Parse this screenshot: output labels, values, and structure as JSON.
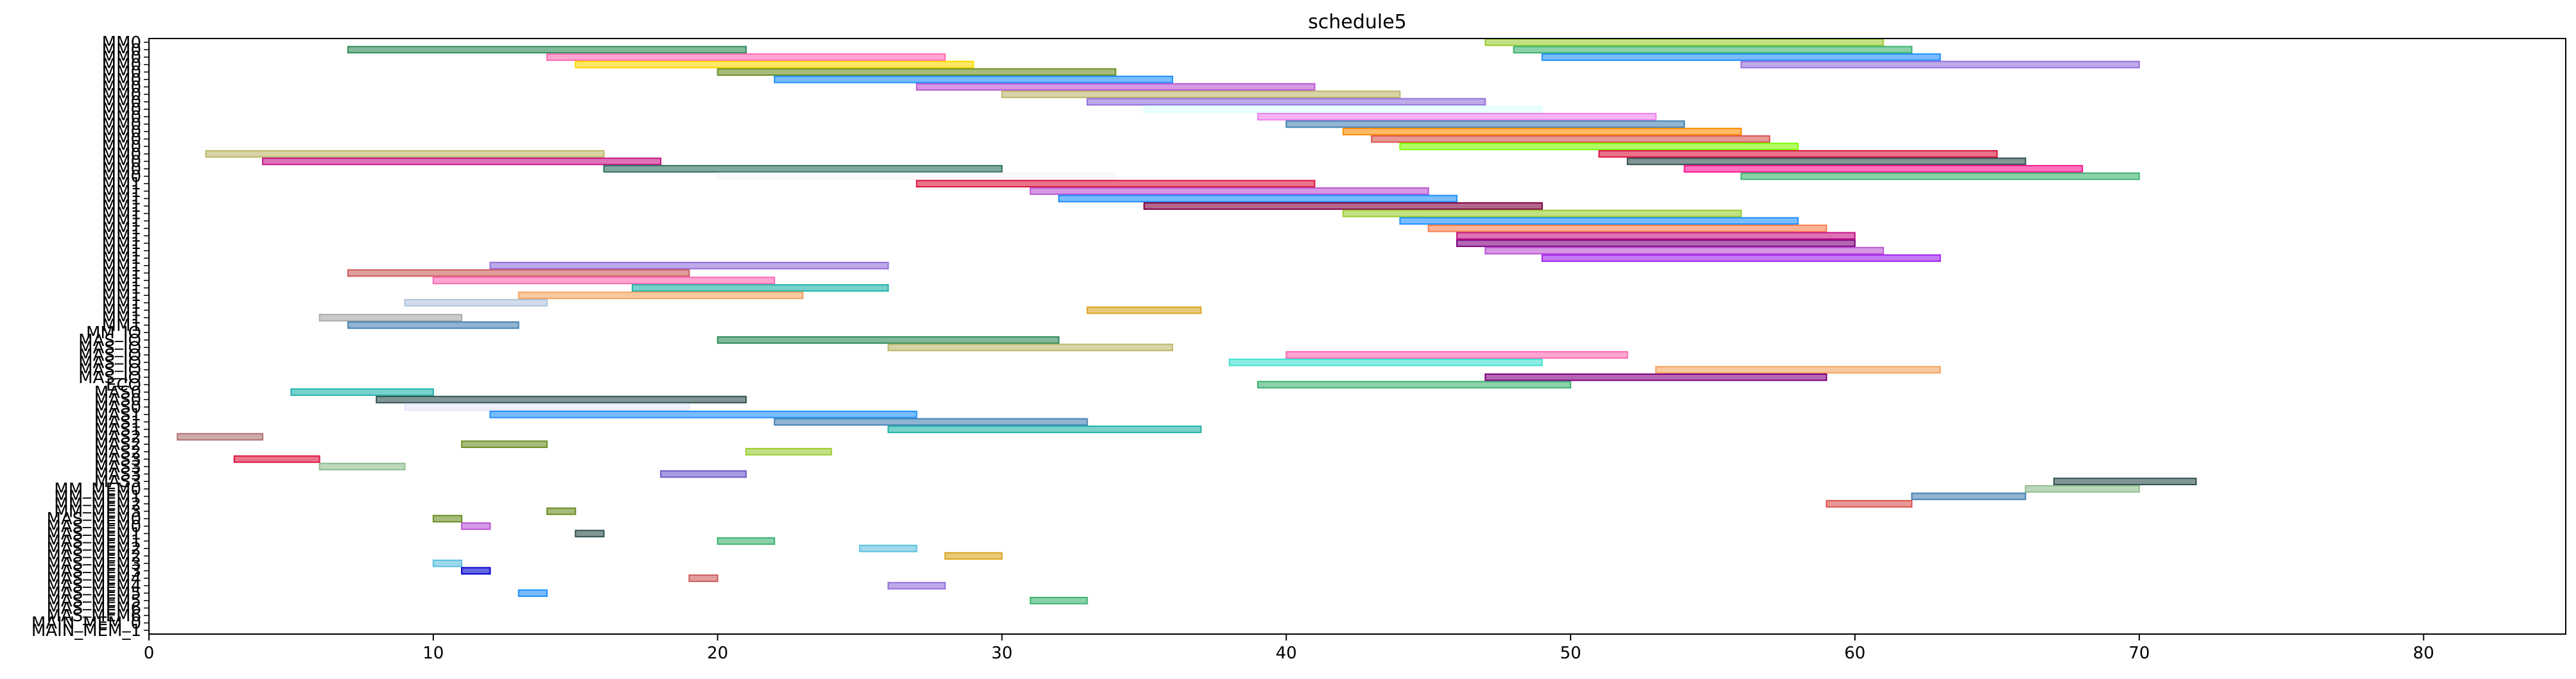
{
  "chart_data": {
    "type": "gantt",
    "title": "schedule5",
    "xlabel": "",
    "ylabel": "",
    "xlim": [
      0,
      85
    ],
    "x_ticks": [
      0,
      10,
      20,
      30,
      40,
      50,
      60,
      70,
      80
    ],
    "grid": false,
    "rows": [
      "MM0",
      "MM0",
      "MM0",
      "MM0",
      "MM0",
      "MM0",
      "MM0",
      "MM0",
      "MM0",
      "MM0",
      "MM0",
      "MM0",
      "MM0",
      "MM0",
      "MM0",
      "MM0",
      "MM0",
      "MM0",
      "MM0",
      "MM1",
      "MM1",
      "MM1",
      "MM1",
      "MM1",
      "MM1",
      "MM1",
      "MM1",
      "MM1",
      "MM1",
      "MM1",
      "MM1",
      "MM1",
      "MM1",
      "MM1",
      "MM1",
      "MM1",
      "MM1",
      "MM1",
      "MM1",
      "MM_IO",
      "MAS_IO",
      "MAS_IO",
      "MAS_IO",
      "MAS_IO",
      "MAS_IO",
      "MAS_IO",
      "ECO",
      "MAS0",
      "MAS0",
      "MAS0",
      "MAS1",
      "MAS1",
      "MAS1",
      "MAS2",
      "MAS2",
      "MAS2",
      "MAS3",
      "MAS3",
      "MAS3",
      "MAS3",
      "MM_MEM0",
      "MM_MEM1",
      "MM_MEM2",
      "MM_MEM3",
      "MAS_MEM0",
      "MAS_MEM0",
      "MAS_MEM1",
      "MAS_MEM1",
      "MAS_MEM2",
      "MAS_MEM2",
      "MAS_MEM3",
      "MAS_MEM3",
      "MAS_MEM4",
      "MAS_MEM4",
      "MAS_MEM5",
      "MAS_MEM5",
      "MAS_MEM6",
      "MAS_MEM6",
      "MAIN_MEM_0",
      "MAIN_MEM_1"
    ],
    "ytick_labels": [
      "MM0",
      "MM0",
      "MM0",
      "MM0",
      "MM0",
      "MM0",
      "MM0",
      "MM0",
      "MM0",
      "MM0",
      "MM0",
      "MM0",
      "MM0",
      "MM0",
      "MM0",
      "MM0",
      "MM0",
      "MM0",
      "MM0",
      "MM1",
      "MM1",
      "MM1",
      "MM1",
      "MM1",
      "MM1",
      "MM1",
      "MM1",
      "MM1",
      "MM1",
      "MM1",
      "MM1",
      "MM1",
      "MM1",
      "MM1",
      "MM1",
      "MM1",
      "MM1",
      "MM1",
      "MM1",
      "MM_IO",
      "MAS_IO",
      "MAS_IO",
      "MAS_IO",
      "MAS_IO",
      "MAS_IO",
      "MAS_IO",
      "ECO",
      "MAS0",
      "MAS0",
      "MAS0",
      "MAS1",
      "MAS1",
      "MAS1",
      "MAS2",
      "MAS2",
      "MAS2",
      "MAS3",
      "MAS3",
      "MAS3",
      "MAS3",
      "MM_MEM0",
      "MM_MEM1",
      "MM_MEM2",
      "MM_MEM3",
      "MAS_MEM0",
      "MAS_MEM0",
      "MAS_MEM1",
      "MAS_MEM1",
      "MAS_MEM2",
      "MAS_MEM2",
      "MAS_MEM3",
      "MAS_MEM3",
      "MAS_MEM4",
      "MAS_MEM4",
      "MAS_MEM5",
      "MAS_MEM5",
      "MAS_MEM6",
      "MAS_MEM6",
      "MAIN_MEM_0",
      "MAIN_MEM_1"
    ],
    "colors": [
      "#d9534f",
      "#5cb85c",
      "#2e8b57",
      "#f0ad4e",
      "#5bc0de",
      "#9370db",
      "#ff69b4",
      "#8fbc8f",
      "#4682b4",
      "#daa520",
      "#ba55d3",
      "#20b2aa",
      "#cd5c5c",
      "#6b8e23",
      "#87cefa",
      "#f4a460",
      "#6a5acd",
      "#3cb371",
      "#dc143c",
      "#00ced1",
      "#ffd700",
      "#c71585",
      "#7fff00",
      "#1e90ff",
      "#ff7f50",
      "#9acd32",
      "#40e0d0",
      "#ee82ee",
      "#b0c4de",
      "#2f4f4f",
      "#bdb76b",
      "#fa8072",
      "#e6e6fa",
      "#ffb6c1",
      "#66cdaa",
      "#0000cd"
    ],
    "tasks": [
      {
        "row": 0,
        "start": 47,
        "end": 61,
        "c": "#9acd32"
      },
      {
        "row": 1,
        "start": 7,
        "end": 21,
        "c": "#2e8b57"
      },
      {
        "row": 1,
        "start": 48,
        "end": 62,
        "c": "#3cb371"
      },
      {
        "row": 2,
        "start": 14,
        "end": 28,
        "c": "#ff69b4"
      },
      {
        "row": 2,
        "start": 49,
        "end": 63,
        "c": "#1e90ff"
      },
      {
        "row": 3,
        "start": 15,
        "end": 29,
        "c": "#ffd700"
      },
      {
        "row": 3,
        "start": 56,
        "end": 70,
        "c": "#9370db"
      },
      {
        "row": 4,
        "start": 20,
        "end": 34,
        "c": "#6b8e23"
      },
      {
        "row": 5,
        "start": 22,
        "end": 36,
        "c": "#1e90ff"
      },
      {
        "row": 6,
        "start": 27,
        "end": 41,
        "c": "#ba55d3"
      },
      {
        "row": 7,
        "start": 30,
        "end": 44,
        "c": "#bdb76b"
      },
      {
        "row": 8,
        "start": 33,
        "end": 47,
        "c": "#9370db"
      },
      {
        "row": 9,
        "start": 35,
        "end": 49,
        "c": "#e0ffff"
      },
      {
        "row": 10,
        "start": 39,
        "end": 53,
        "c": "#ee82ee"
      },
      {
        "row": 11,
        "start": 40,
        "end": 54,
        "c": "#4682b4"
      },
      {
        "row": 12,
        "start": 42,
        "end": 56,
        "c": "#ff8c00"
      },
      {
        "row": 13,
        "start": 43,
        "end": 57,
        "c": "#d9534f"
      },
      {
        "row": 14,
        "start": 44,
        "end": 58,
        "c": "#7fff00"
      },
      {
        "row": 15,
        "start": 2,
        "end": 16,
        "c": "#bdb76b"
      },
      {
        "row": 15,
        "start": 51,
        "end": 65,
        "c": "#dc143c"
      },
      {
        "row": 16,
        "start": 4,
        "end": 18,
        "c": "#c71585"
      },
      {
        "row": 16,
        "start": 52,
        "end": 66,
        "c": "#2f4f4f"
      },
      {
        "row": 17,
        "start": 16,
        "end": 30,
        "c": "#2f6f5f"
      },
      {
        "row": 17,
        "start": 54,
        "end": 68,
        "c": "#ff1493"
      },
      {
        "row": 18,
        "start": 20,
        "end": 34,
        "c": "#f5f5f5"
      },
      {
        "row": 18,
        "start": 56,
        "end": 70,
        "c": "#3cb371"
      },
      {
        "row": 19,
        "start": 27,
        "end": 41,
        "c": "#dc143c"
      },
      {
        "row": 20,
        "start": 31,
        "end": 45,
        "c": "#ba55d3"
      },
      {
        "row": 21,
        "start": 32,
        "end": 46,
        "c": "#1e90ff"
      },
      {
        "row": 22,
        "start": 35,
        "end": 49,
        "c": "#800040"
      },
      {
        "row": 23,
        "start": 42,
        "end": 56,
        "c": "#9acd32"
      },
      {
        "row": 24,
        "start": 44,
        "end": 58,
        "c": "#1e90ff"
      },
      {
        "row": 25,
        "start": 45,
        "end": 59,
        "c": "#ff7f50"
      },
      {
        "row": 26,
        "start": 46,
        "end": 60,
        "c": "#c71585"
      },
      {
        "row": 27,
        "start": 46,
        "end": 60,
        "c": "#800080"
      },
      {
        "row": 28,
        "start": 47,
        "end": 61,
        "c": "#ba55d3"
      },
      {
        "row": 29,
        "start": 49,
        "end": 63,
        "c": "#a020f0"
      },
      {
        "row": 30,
        "start": 12,
        "end": 26,
        "c": "#9370db"
      },
      {
        "row": 31,
        "start": 7,
        "end": 19,
        "c": "#cd5c5c"
      },
      {
        "row": 32,
        "start": 10,
        "end": 22,
        "c": "#ff69b4"
      },
      {
        "row": 33,
        "start": 17,
        "end": 26,
        "c": "#20b2aa"
      },
      {
        "row": 34,
        "start": 13,
        "end": 23,
        "c": "#f4a460"
      },
      {
        "row": 35,
        "start": 9,
        "end": 14,
        "c": "#b0c4de"
      },
      {
        "row": 36,
        "start": 33,
        "end": 37,
        "c": "#daa520"
      },
      {
        "row": 37,
        "start": 6,
        "end": 11,
        "c": "#a9a9a9"
      },
      {
        "row": 38,
        "start": 7,
        "end": 13,
        "c": "#4682b4"
      },
      {
        "row": 40,
        "start": 20,
        "end": 32,
        "c": "#2e8b57"
      },
      {
        "row": 41,
        "start": 26,
        "end": 36,
        "c": "#bdb76b"
      },
      {
        "row": 42,
        "start": 40,
        "end": 52,
        "c": "#ff69b4"
      },
      {
        "row": 43,
        "start": 38,
        "end": 49,
        "c": "#40e0d0"
      },
      {
        "row": 44,
        "start": 53,
        "end": 63,
        "c": "#f4a460"
      },
      {
        "row": 45,
        "start": 47,
        "end": 59,
        "c": "#800080"
      },
      {
        "row": 46,
        "start": 39,
        "end": 50,
        "c": "#3cb371"
      },
      {
        "row": 47,
        "start": 5,
        "end": 10,
        "c": "#20b2aa"
      },
      {
        "row": 48,
        "start": 8,
        "end": 21,
        "c": "#2f4f4f"
      },
      {
        "row": 49,
        "start": 9,
        "end": 19,
        "c": "#e6e6fa"
      },
      {
        "row": 50,
        "start": 12,
        "end": 27,
        "c": "#1e90ff"
      },
      {
        "row": 51,
        "start": 22,
        "end": 33,
        "c": "#4682b4"
      },
      {
        "row": 52,
        "start": 26,
        "end": 37,
        "c": "#20b2aa"
      },
      {
        "row": 53,
        "start": 1,
        "end": 4,
        "c": "#b07070"
      },
      {
        "row": 54,
        "start": 11,
        "end": 14,
        "c": "#6b8e23"
      },
      {
        "row": 55,
        "start": 21,
        "end": 24,
        "c": "#9acd32"
      },
      {
        "row": 56,
        "start": 3,
        "end": 6,
        "c": "#dc143c"
      },
      {
        "row": 57,
        "start": 6,
        "end": 9,
        "c": "#8fbc8f"
      },
      {
        "row": 58,
        "start": 18,
        "end": 21,
        "c": "#6a5acd"
      },
      {
        "row": 59,
        "start": 67,
        "end": 72,
        "c": "#2f4f4f"
      },
      {
        "row": 60,
        "start": 66,
        "end": 70,
        "c": "#8fbc8f"
      },
      {
        "row": 61,
        "start": 62,
        "end": 66,
        "c": "#4682b4"
      },
      {
        "row": 62,
        "start": 59,
        "end": 62,
        "c": "#d9534f"
      },
      {
        "row": 63,
        "start": 14,
        "end": 15,
        "c": "#6b8e23"
      },
      {
        "row": 64,
        "start": 10,
        "end": 11,
        "c": "#6b8e23"
      },
      {
        "row": 65,
        "start": 11,
        "end": 12,
        "c": "#ba55d3"
      },
      {
        "row": 66,
        "start": 15,
        "end": 16,
        "c": "#2f4f4f"
      },
      {
        "row": 67,
        "start": 20,
        "end": 22,
        "c": "#3cb371"
      },
      {
        "row": 68,
        "start": 25,
        "end": 27,
        "c": "#5bc0de"
      },
      {
        "row": 69,
        "start": 28,
        "end": 30,
        "c": "#daa520"
      },
      {
        "row": 70,
        "start": 10,
        "end": 11,
        "c": "#5bc0de"
      },
      {
        "row": 71,
        "start": 11,
        "end": 12,
        "c": "#0000cd"
      },
      {
        "row": 72,
        "start": 19,
        "end": 20,
        "c": "#cd5c5c"
      },
      {
        "row": 73,
        "start": 26,
        "end": 28,
        "c": "#9370db"
      },
      {
        "row": 74,
        "start": 13,
        "end": 14,
        "c": "#1e90ff"
      },
      {
        "row": 75,
        "start": 31,
        "end": 33,
        "c": "#3cb371"
      }
    ]
  }
}
